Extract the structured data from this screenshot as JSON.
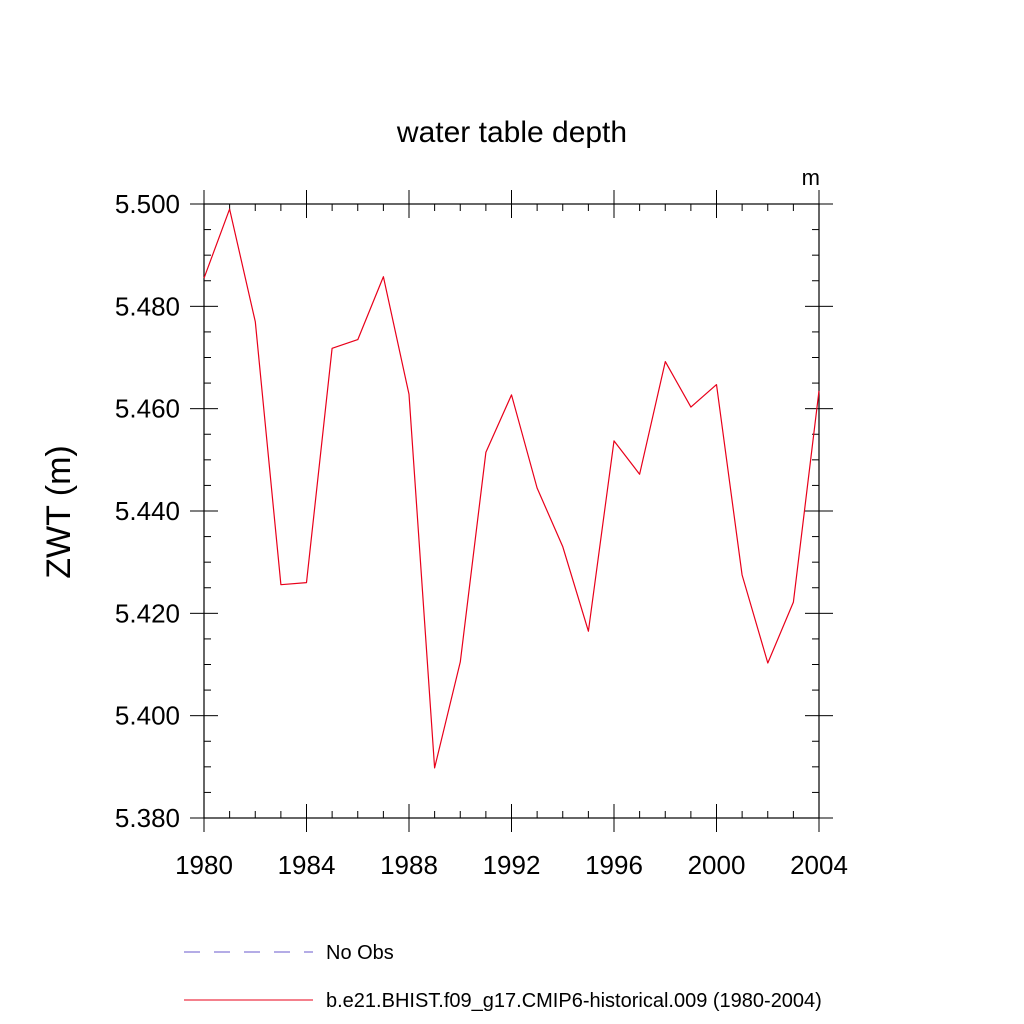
{
  "chart_data": {
    "type": "line",
    "title": "water table depth",
    "units_label": "m",
    "ylabel": "ZWT  (m)",
    "xlabel": "",
    "xlim": [
      1980,
      2004
    ],
    "ylim": [
      5.38,
      5.5
    ],
    "x_ticks": [
      1980,
      1984,
      1988,
      1992,
      1996,
      2000,
      2004
    ],
    "x_tick_labels": [
      "1980",
      "1984",
      "1988",
      "1992",
      "1996",
      "2000",
      "2004"
    ],
    "y_ticks": [
      5.38,
      5.4,
      5.42,
      5.44,
      5.46,
      5.48,
      5.5
    ],
    "y_tick_labels": [
      "5.380",
      "5.400",
      "5.420",
      "5.440",
      "5.460",
      "5.480",
      "5.500"
    ],
    "grid": false,
    "legend_position": "bottom",
    "legend": [
      {
        "label": "No Obs",
        "color": "#6a5acd",
        "style": "dashed"
      },
      {
        "label": "b.e21.BHIST.f09_g17.CMIP6-historical.009 (1980-2004)",
        "color": "#e8001a",
        "style": "solid"
      }
    ],
    "series": [
      {
        "color": "#e8001a",
        "x": [
          1980,
          1981,
          1982,
          1983,
          1984,
          1985,
          1986,
          1987,
          1988,
          1989,
          1990,
          1991,
          1992,
          1993,
          1994,
          1995,
          1996,
          1997,
          1998,
          1999,
          2000,
          2001,
          2002,
          2003,
          2004
        ],
        "values": [
          5.4855,
          5.499,
          5.477,
          5.4256,
          5.426,
          5.4718,
          5.4735,
          5.4858,
          5.4628,
          5.3898,
          5.4105,
          5.4515,
          5.4627,
          5.4445,
          5.433,
          5.4165,
          5.4537,
          5.4472,
          5.4692,
          5.4603,
          5.4647,
          5.4275,
          5.4103,
          5.4222,
          5.4635
        ]
      }
    ]
  }
}
